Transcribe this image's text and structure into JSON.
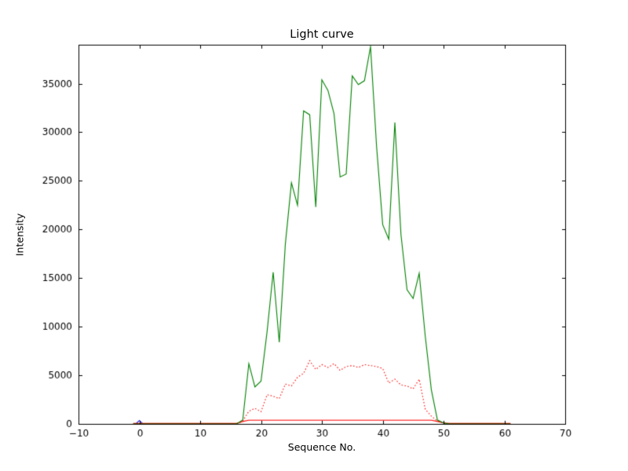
{
  "figure": {
    "title": "Light curve",
    "xlabel": "Sequence No.",
    "ylabel": "Intensity",
    "background": "#ffffff",
    "frame_color": "#000000"
  },
  "chart_data": {
    "type": "line",
    "title": "Light curve",
    "xlabel": "Sequence No.",
    "ylabel": "Intensity",
    "xlim": [
      -10,
      70
    ],
    "ylim": [
      0,
      39000
    ],
    "xticks": [
      -10,
      0,
      10,
      20,
      30,
      40,
      50,
      60,
      70
    ],
    "yticks": [
      0,
      5000,
      10000,
      15000,
      20000,
      25000,
      30000,
      35000
    ],
    "grid": false,
    "legend_position": "none",
    "series": [
      {
        "name": "blue-marker",
        "color": "#0000ff",
        "style": "solid",
        "x": [
          -0.5,
          0,
          0.5
        ],
        "y": [
          50,
          350,
          50
        ]
      },
      {
        "name": "red-solid-intensity",
        "color": "#ff0000",
        "style": "solid",
        "x": [
          -1,
          0,
          1,
          2,
          3,
          4,
          5,
          6,
          7,
          8,
          9,
          10,
          11,
          12,
          13,
          14,
          15,
          16,
          17,
          18,
          19,
          20,
          21,
          22,
          23,
          24,
          25,
          26,
          27,
          28,
          29,
          30,
          31,
          32,
          33,
          34,
          35,
          36,
          37,
          38,
          39,
          40,
          41,
          42,
          43,
          44,
          45,
          46,
          47,
          48,
          49,
          50,
          51,
          52,
          53,
          54,
          55,
          56,
          57,
          58,
          59,
          60,
          61
        ],
        "y": [
          50,
          50,
          50,
          50,
          50,
          50,
          50,
          50,
          50,
          50,
          50,
          50,
          50,
          50,
          50,
          50,
          50,
          50,
          250,
          380,
          380,
          380,
          380,
          380,
          380,
          380,
          380,
          380,
          380,
          380,
          380,
          380,
          380,
          380,
          380,
          380,
          380,
          380,
          380,
          380,
          380,
          380,
          380,
          380,
          380,
          380,
          380,
          380,
          380,
          380,
          250,
          100,
          50,
          50,
          50,
          50,
          50,
          50,
          50,
          50,
          50,
          50,
          50
        ]
      },
      {
        "name": "red-dotted-intensity",
        "color": "#ff0000",
        "style": "dotted",
        "x": [
          -1,
          0,
          1,
          2,
          3,
          4,
          5,
          6,
          7,
          8,
          9,
          10,
          11,
          12,
          13,
          14,
          15,
          16,
          17,
          18,
          19,
          20,
          21,
          22,
          23,
          24,
          25,
          26,
          27,
          28,
          29,
          30,
          31,
          32,
          33,
          34,
          35,
          36,
          37,
          38,
          39,
          40,
          41,
          42,
          43,
          44,
          45,
          46,
          47,
          48,
          49,
          50,
          51,
          52,
          53,
          54,
          55,
          56,
          57,
          58,
          59,
          60,
          61
        ],
        "y": [
          0,
          0,
          0,
          0,
          0,
          0,
          0,
          0,
          0,
          0,
          0,
          0,
          0,
          0,
          0,
          0,
          0,
          0,
          300,
          1300,
          1600,
          1250,
          3000,
          2850,
          2600,
          4100,
          3900,
          4800,
          5200,
          6500,
          5600,
          6100,
          5800,
          6200,
          5500,
          5900,
          6000,
          5800,
          6100,
          6000,
          5900,
          5700,
          4200,
          4600,
          4000,
          3900,
          3600,
          4600,
          1500,
          800,
          300,
          100,
          0,
          0,
          0,
          0,
          0,
          0,
          0,
          0,
          0,
          0,
          0
        ]
      },
      {
        "name": "green-intensity",
        "color": "#008000",
        "style": "solid",
        "x": [
          -1,
          0,
          1,
          2,
          3,
          4,
          5,
          6,
          7,
          8,
          9,
          10,
          11,
          12,
          13,
          14,
          15,
          16,
          17,
          18,
          19,
          20,
          21,
          22,
          23,
          24,
          25,
          26,
          27,
          28,
          29,
          30,
          31,
          32,
          33,
          34,
          35,
          36,
          37,
          38,
          39,
          40,
          41,
          42,
          43,
          44,
          45,
          46,
          47,
          48,
          49,
          50,
          51,
          52,
          53,
          54,
          55,
          56,
          57,
          58,
          59,
          60,
          61
        ],
        "y": [
          0,
          0,
          0,
          0,
          0,
          0,
          0,
          0,
          0,
          0,
          0,
          0,
          0,
          0,
          0,
          0,
          0,
          0,
          400,
          6200,
          3800,
          4400,
          9500,
          15600,
          8400,
          18500,
          24800,
          22500,
          32200,
          31800,
          22300,
          35400,
          34300,
          31900,
          25400,
          25700,
          35800,
          34900,
          35300,
          38800,
          28500,
          20500,
          19000,
          31000,
          19500,
          13800,
          12900,
          15500,
          9000,
          3500,
          400,
          100,
          0,
          0,
          0,
          0,
          0,
          0,
          0,
          0,
          0,
          0,
          0
        ]
      }
    ]
  }
}
